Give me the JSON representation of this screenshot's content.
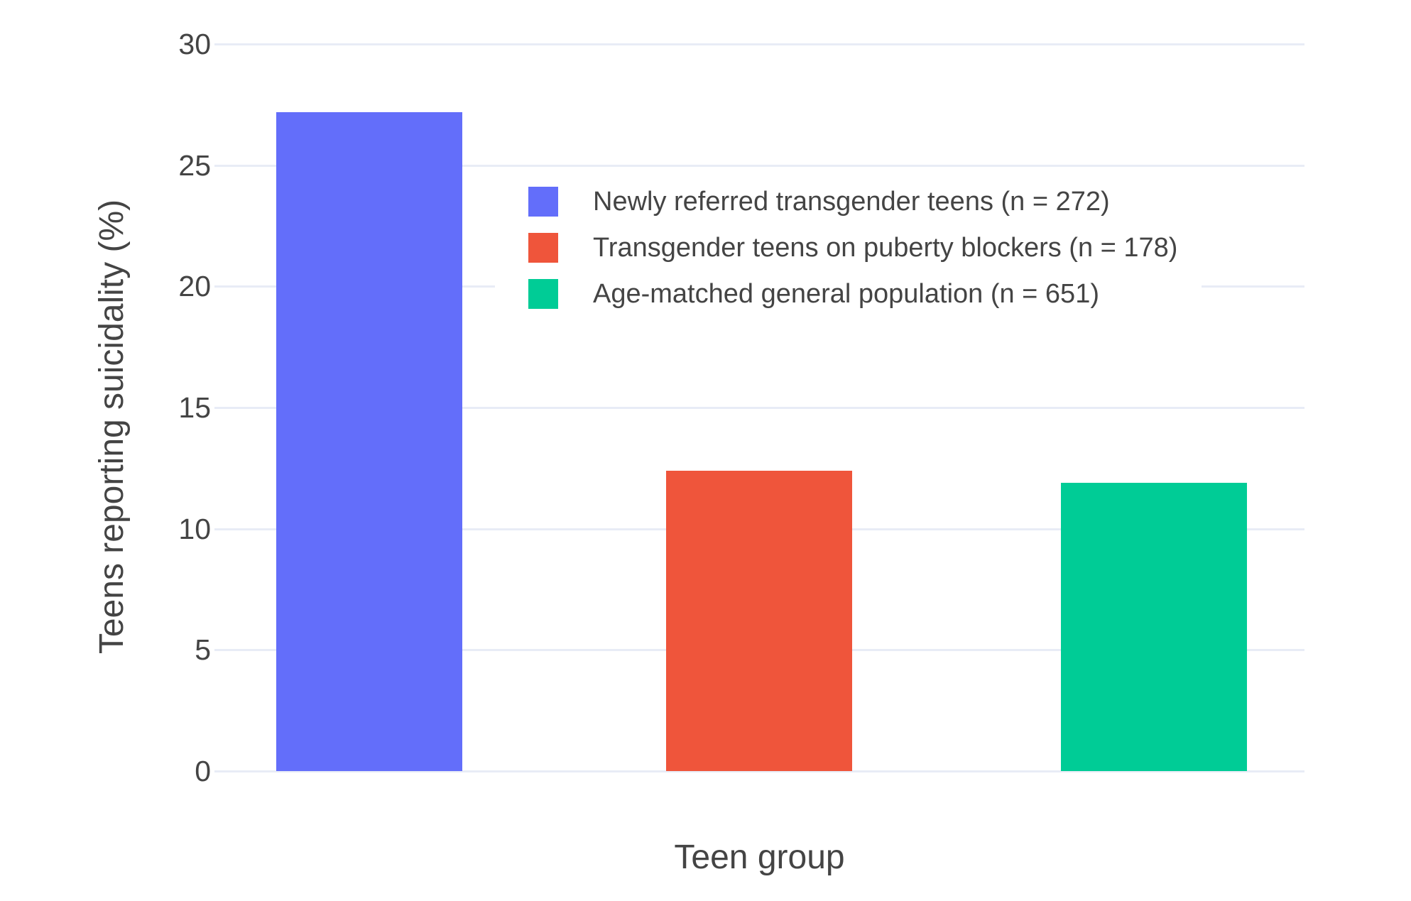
{
  "figure": {
    "background": "#FFFFFF",
    "text_color": "#444444"
  },
  "axes": {
    "y_title": "Teens reporting suicidality (%)",
    "x_title": "Teen group"
  },
  "legend": {
    "items": [
      {
        "label": "Newly referred transgender teens (n = 272)",
        "color": "#636EFA"
      },
      {
        "label": "Transgender teens on puberty blockers (n = 178)",
        "color": "#EF553B"
      },
      {
        "label": "Age-matched general population (n = 651)",
        "color": "#00CC96"
      }
    ]
  },
  "chart_data": {
    "type": "bar",
    "title": "",
    "xlabel": "Teen group",
    "ylabel": "Teens reporting suicidality (%)",
    "categories": [
      "Newly referred transgender teens (n = 272)",
      "Transgender teens on puberty blockers (n = 178)",
      "Age-matched general population (n = 651)"
    ],
    "values": [
      27.2,
      12.4,
      11.9
    ],
    "colors": [
      "#636EFA",
      "#EF553B",
      "#00CC96"
    ],
    "ylim": [
      0,
      30
    ],
    "yticks": [
      0,
      5,
      10,
      15,
      20,
      25,
      30
    ],
    "x_tick_labels_shown": false,
    "grid": true,
    "gridline_color": "#E8ECF6",
    "legend_position": "inside top-right"
  }
}
